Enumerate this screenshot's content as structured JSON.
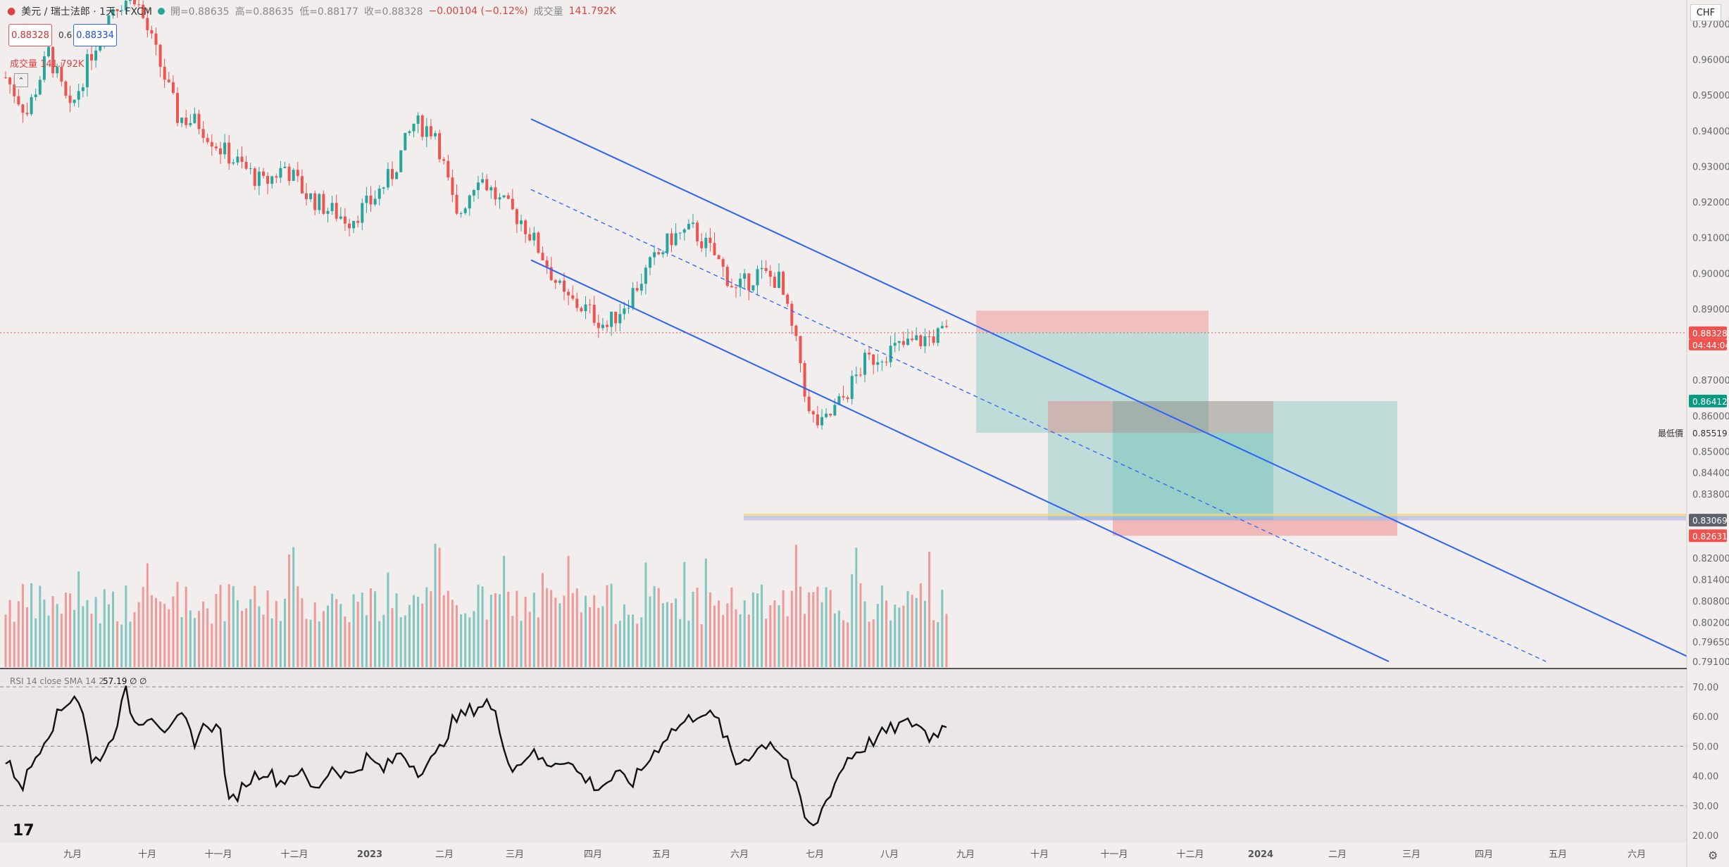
{
  "header": {
    "symbol": "美元 / 瑞士法郎 · 1天 · FXCM",
    "open": "開=0.88635",
    "high": "高=0.88635",
    "low": "低=0.88177",
    "close": "收=0.88328",
    "change": "−0.00104 (−0.12%)",
    "volume_label": "成交量",
    "volume_value": "141.792K",
    "sell_price": "0.88328",
    "spread": "0.6",
    "buy_price": "0.88334",
    "volume_line": "成交量 141.792K"
  },
  "currency": "CHF",
  "colors": {
    "up": "#26a69a",
    "down": "#ef5350",
    "channel": "#2962ff",
    "background": "#f2eeee"
  },
  "price_axis": {
    "ticks": [
      "0.97000",
      "0.96000",
      "0.95000",
      "0.94000",
      "0.93000",
      "0.92000",
      "0.91000",
      "0.90000",
      "0.89000",
      "0.87000",
      "0.86000",
      "0.85000",
      "0.84400",
      "0.83800",
      "0.82000",
      "0.81400",
      "0.80800",
      "0.80200",
      "0.79650",
      "0.79100"
    ],
    "tick_values": [
      0.97,
      0.96,
      0.95,
      0.94,
      0.93,
      0.92,
      0.91,
      0.9,
      0.89,
      0.87,
      0.86,
      0.85,
      0.844,
      0.838,
      0.82,
      0.814,
      0.808,
      0.802,
      0.7965,
      0.791
    ],
    "last_price": "0.88328",
    "countdown": "04:44:04",
    "label_target": "0.86412",
    "label_avg": "0.85519",
    "avg_caption": "最低價",
    "label_support": "0.83069",
    "label_stop": "0.82631"
  },
  "time_axis": [
    "九月",
    "十月",
    "十一月",
    "十二月",
    "2023",
    "二月",
    "三月",
    "四月",
    "五月",
    "六月",
    "七月",
    "八月",
    "九月",
    "十月",
    "十一月",
    "十二月",
    "2024",
    "二月",
    "三月",
    "四月",
    "五月",
    "六月"
  ],
  "rsi": {
    "label": "RSI 14 close SMA 14 2",
    "value": "57.19",
    "extra1": "∅",
    "extra2": "∅",
    "ticks": [
      "70.00",
      "60.00",
      "50.00",
      "40.00",
      "30.00",
      "20.00"
    ],
    "tick_values": [
      70,
      60,
      50,
      40,
      30,
      20
    ]
  },
  "chart_data": {
    "type": "candlestick",
    "title": "美元 / 瑞士法郎 · 1天 · FXCM",
    "ylim": [
      0.791,
      0.97
    ],
    "close_anchors": [
      [
        0,
        0.955
      ],
      [
        5,
        0.945
      ],
      [
        10,
        0.962
      ],
      [
        15,
        0.945
      ],
      [
        20,
        0.962
      ],
      [
        25,
        0.975
      ],
      [
        30,
        0.978
      ],
      [
        34,
        0.965
      ],
      [
        37,
        0.955
      ],
      [
        40,
        0.944
      ],
      [
        45,
        0.942
      ],
      [
        50,
        0.935
      ],
      [
        55,
        0.93
      ],
      [
        60,
        0.925
      ],
      [
        65,
        0.93
      ],
      [
        70,
        0.922
      ],
      [
        75,
        0.918
      ],
      [
        80,
        0.915
      ],
      [
        85,
        0.92
      ],
      [
        90,
        0.928
      ],
      [
        95,
        0.942
      ],
      [
        100,
        0.94
      ],
      [
        105,
        0.915
      ],
      [
        110,
        0.928
      ],
      [
        115,
        0.92
      ],
      [
        120,
        0.915
      ],
      [
        125,
        0.905
      ],
      [
        130,
        0.893
      ],
      [
        135,
        0.89
      ],
      [
        140,
        0.885
      ],
      [
        145,
        0.893
      ],
      [
        150,
        0.902
      ],
      [
        155,
        0.91
      ],
      [
        160,
        0.912
      ],
      [
        165,
        0.905
      ],
      [
        170,
        0.895
      ],
      [
        175,
        0.9
      ],
      [
        180,
        0.898
      ],
      [
        185,
        0.875
      ],
      [
        187,
        0.86
      ],
      [
        190,
        0.857
      ],
      [
        195,
        0.865
      ],
      [
        200,
        0.875
      ],
      [
        205,
        0.878
      ],
      [
        210,
        0.88
      ],
      [
        215,
        0.882
      ],
      [
        219,
        0.8833
      ]
    ],
    "levels": {
      "last": 0.88328,
      "target": 0.86412,
      "average": 0.85519,
      "support": 0.83069,
      "stop": 0.82631
    },
    "rsi_anchors": [
      [
        0,
        45
      ],
      [
        4,
        37
      ],
      [
        8,
        50
      ],
      [
        12,
        60
      ],
      [
        16,
        68
      ],
      [
        18,
        62
      ],
      [
        20,
        44
      ],
      [
        24,
        50
      ],
      [
        28,
        68
      ],
      [
        30,
        58
      ],
      [
        34,
        61
      ],
      [
        38,
        54
      ],
      [
        41,
        60
      ],
      [
        44,
        52
      ],
      [
        47,
        58
      ],
      [
        50,
        55
      ],
      [
        52,
        30
      ],
      [
        56,
        38
      ],
      [
        60,
        42
      ],
      [
        64,
        38
      ],
      [
        68,
        42
      ],
      [
        72,
        35
      ],
      [
        76,
        43
      ],
      [
        80,
        40
      ],
      [
        84,
        46
      ],
      [
        88,
        42
      ],
      [
        92,
        48
      ],
      [
        96,
        42
      ],
      [
        100,
        46
      ],
      [
        104,
        58
      ],
      [
        108,
        62
      ],
      [
        112,
        65
      ],
      [
        114,
        60
      ],
      [
        118,
        42
      ],
      [
        122,
        48
      ],
      [
        126,
        44
      ],
      [
        130,
        46
      ],
      [
        134,
        40
      ],
      [
        138,
        36
      ],
      [
        142,
        40
      ],
      [
        146,
        38
      ],
      [
        150,
        46
      ],
      [
        154,
        54
      ],
      [
        158,
        58
      ],
      [
        162,
        62
      ],
      [
        166,
        58
      ],
      [
        170,
        44
      ],
      [
        174,
        48
      ],
      [
        178,
        52
      ],
      [
        182,
        45
      ],
      [
        186,
        26
      ],
      [
        188,
        22
      ],
      [
        192,
        35
      ],
      [
        196,
        46
      ],
      [
        200,
        50
      ],
      [
        204,
        54
      ],
      [
        208,
        57
      ],
      [
        212,
        58
      ],
      [
        215,
        53
      ],
      [
        219,
        57.19
      ]
    ]
  }
}
